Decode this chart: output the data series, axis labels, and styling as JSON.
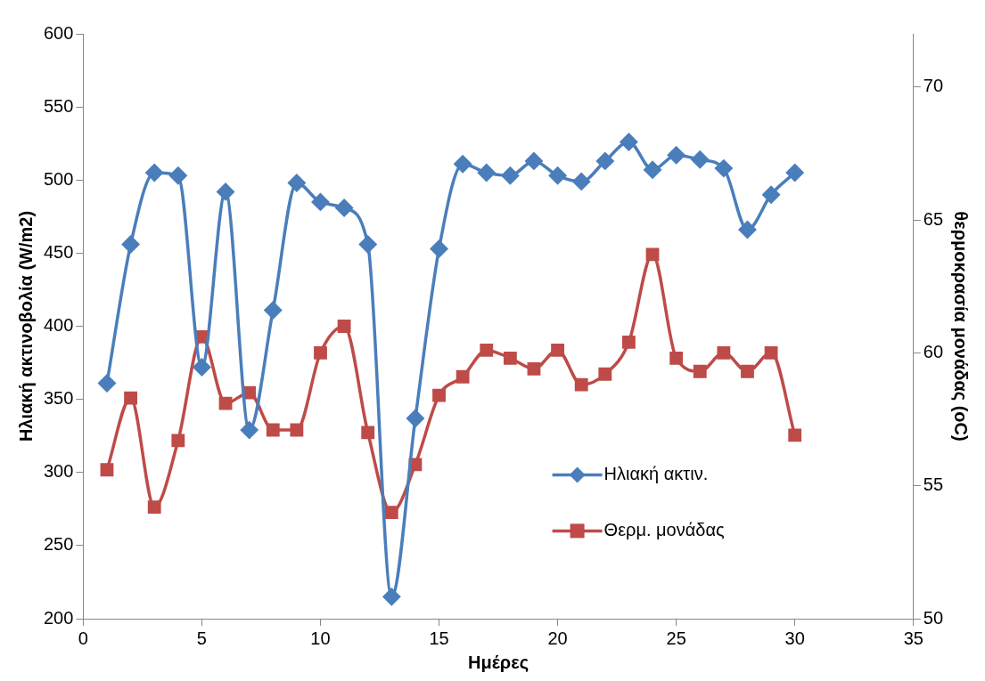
{
  "chart_data": {
    "type": "line",
    "xlabel": "Ημέρες",
    "ylabel": "Ηλιακή ακτινοβολία (W/m2)",
    "y2label": "θερμοκρασία μονάδας (oC)",
    "x": [
      1,
      2,
      3,
      4,
      5,
      6,
      7,
      8,
      9,
      10,
      11,
      12,
      13,
      14,
      15,
      16,
      17,
      18,
      19,
      20,
      21,
      22,
      23,
      24,
      25,
      26,
      27,
      28,
      29,
      30
    ],
    "series": [
      {
        "name": "Ηλιακή ακτιν.",
        "color": "#4a7ebb",
        "marker": "diamond",
        "values": [
          361,
          456,
          505,
          503,
          372,
          492,
          329,
          411,
          498,
          485,
          481,
          456,
          215,
          337,
          453,
          511,
          505,
          503,
          513,
          503,
          499,
          513,
          526,
          507,
          517,
          514,
          508,
          466,
          490,
          505
        ]
      },
      {
        "name": "Θερμ. μονάδας",
        "color": "#be4b48",
        "marker": "square",
        "axis": "y2",
        "values": [
          55.6,
          58.3,
          54.2,
          56.7,
          60.6,
          58.1,
          58.5,
          57.1,
          57.1,
          60.0,
          61.0,
          57.0,
          54.0,
          55.8,
          58.4,
          59.1,
          60.1,
          59.8,
          59.4,
          60.1,
          58.8,
          59.2,
          60.4,
          63.7,
          59.8,
          59.3,
          60.0,
          59.3,
          60.0,
          56.9
        ]
      }
    ],
    "xlim": [
      0,
      35
    ],
    "xticks": [
      0,
      5,
      10,
      15,
      20,
      25,
      30,
      35
    ],
    "ylim": [
      200,
      600
    ],
    "yticks": [
      200,
      250,
      300,
      350,
      400,
      450,
      500,
      550,
      600
    ],
    "y2lim": [
      50,
      72
    ],
    "y2ticks": [
      50,
      55,
      60,
      65,
      70
    ],
    "grid": false,
    "legend": "right",
    "line_style": "solid"
  }
}
